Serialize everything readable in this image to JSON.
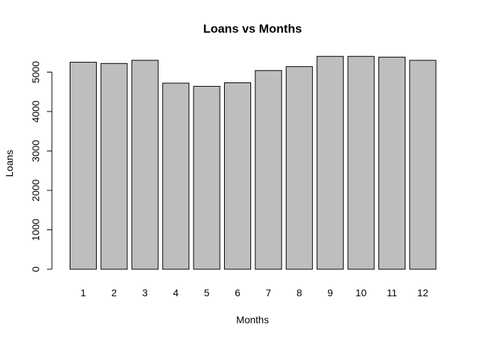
{
  "chart_data": {
    "type": "bar",
    "title": "Loans vs Months",
    "xlabel": "Months",
    "ylabel": "Loans",
    "categories": [
      "1",
      "2",
      "3",
      "4",
      "5",
      "6",
      "7",
      "8",
      "9",
      "10",
      "11",
      "12"
    ],
    "values": [
      5250,
      5220,
      5300,
      4720,
      4640,
      4730,
      5040,
      5140,
      5400,
      5400,
      5380,
      5300
    ],
    "yticks": [
      0,
      1000,
      2000,
      3000,
      4000,
      5000
    ],
    "ylim": [
      0,
      5400
    ],
    "grid": false,
    "legend": "none",
    "bar_color": "#bebebe",
    "border_color": "#000000"
  }
}
